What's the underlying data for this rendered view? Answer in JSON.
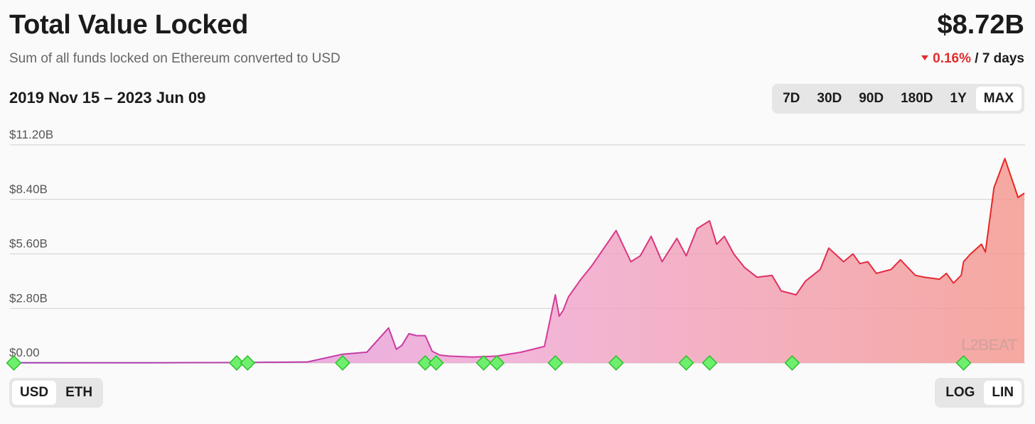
{
  "header": {
    "title": "Total Value Locked",
    "subtitle": "Sum of all funds locked on Ethereum converted to USD",
    "value": "$8.72B",
    "change": "0.16%",
    "change_period": "/ 7 days",
    "date_range": "2019 Nov 15 – 2023 Jun 09"
  },
  "range_buttons": [
    "7D",
    "30D",
    "90D",
    "180D",
    "1Y",
    "MAX"
  ],
  "range_selected": "MAX",
  "unit_buttons": [
    "USD",
    "ETH"
  ],
  "unit_selected": "USD",
  "scale_buttons": [
    "LOG",
    "LIN"
  ],
  "scale_selected": "LIN",
  "watermark": "L2BEAT",
  "colors": {
    "line_start": "#9b3fb0",
    "line_mid": "#d63aa0",
    "line_end": "#e8271c",
    "marker": "#6ef06e",
    "negative": "#e22d2d"
  },
  "chart_data": {
    "type": "area",
    "title": "Total Value Locked",
    "ylabel": "",
    "xlabel": "",
    "xlim": [
      "2019-11-15",
      "2023-06-09"
    ],
    "ylim": [
      0,
      11.2
    ],
    "y_unit": "$B",
    "yticks": [
      "$0.00",
      "$2.80B",
      "$5.60B",
      "$8.40B",
      "$11.20B"
    ],
    "ytick_values": [
      0,
      2.8,
      5.6,
      8.4,
      11.2
    ],
    "grid": true,
    "series": [
      {
        "x": [
          "2019-11-15",
          "2020-03-01",
          "2020-06-01",
          "2020-09-01",
          "2020-12-01",
          "2021-01-15",
          "2021-02-15",
          "2021-03-15",
          "2021-03-25",
          "2021-04-01",
          "2021-04-10",
          "2021-04-20",
          "2021-05-01",
          "2021-05-10",
          "2021-05-20",
          "2021-06-01",
          "2021-07-01",
          "2021-08-01",
          "2021-09-01",
          "2021-10-01",
          "2021-10-15",
          "2021-10-20",
          "2021-10-25",
          "2021-11-01",
          "2021-11-15",
          "2021-12-01",
          "2022-01-01",
          "2022-01-20",
          "2022-02-01",
          "2022-02-15",
          "2022-03-01",
          "2022-03-20",
          "2022-04-01",
          "2022-04-15",
          "2022-05-01",
          "2022-05-10",
          "2022-05-20",
          "2022-06-01",
          "2022-06-15",
          "2022-07-01",
          "2022-07-20",
          "2022-08-01",
          "2022-08-20",
          "2022-09-01",
          "2022-09-20",
          "2022-10-01",
          "2022-10-20",
          "2022-11-01",
          "2022-11-10",
          "2022-11-20",
          "2022-12-01",
          "2022-12-20",
          "2023-01-01",
          "2023-01-20",
          "2023-02-01",
          "2023-02-20",
          "2023-03-01",
          "2023-03-10",
          "2023-03-20",
          "2023-03-23",
          "2023-04-01",
          "2023-04-15",
          "2023-04-20",
          "2023-05-01",
          "2023-05-15",
          "2023-06-01",
          "2023-06-09"
        ],
        "y": [
          0.01,
          0.01,
          0.01,
          0.02,
          0.05,
          0.45,
          0.55,
          1.8,
          0.7,
          0.9,
          1.5,
          1.4,
          1.4,
          0.6,
          0.4,
          0.35,
          0.3,
          0.35,
          0.55,
          0.85,
          3.5,
          2.4,
          2.7,
          3.4,
          4.2,
          5.0,
          6.8,
          5.2,
          5.5,
          6.5,
          5.2,
          6.4,
          5.5,
          6.9,
          7.3,
          6.1,
          6.5,
          5.6,
          4.9,
          4.4,
          4.5,
          3.7,
          3.5,
          4.2,
          4.8,
          5.9,
          5.2,
          5.6,
          5.1,
          5.2,
          4.6,
          4.8,
          5.3,
          4.5,
          4.4,
          4.3,
          4.6,
          4.1,
          4.5,
          5.2,
          5.6,
          6.1,
          5.7,
          9.0,
          10.5,
          8.5,
          8.72
        ]
      }
    ],
    "event_markers": [
      "2019-11-20",
      "2020-09-01",
      "2020-09-15",
      "2021-01-15",
      "2021-05-01",
      "2021-05-15",
      "2021-07-15",
      "2021-08-01",
      "2021-10-15",
      "2022-01-01",
      "2022-04-01",
      "2022-05-01",
      "2022-08-15",
      "2023-03-23"
    ]
  }
}
